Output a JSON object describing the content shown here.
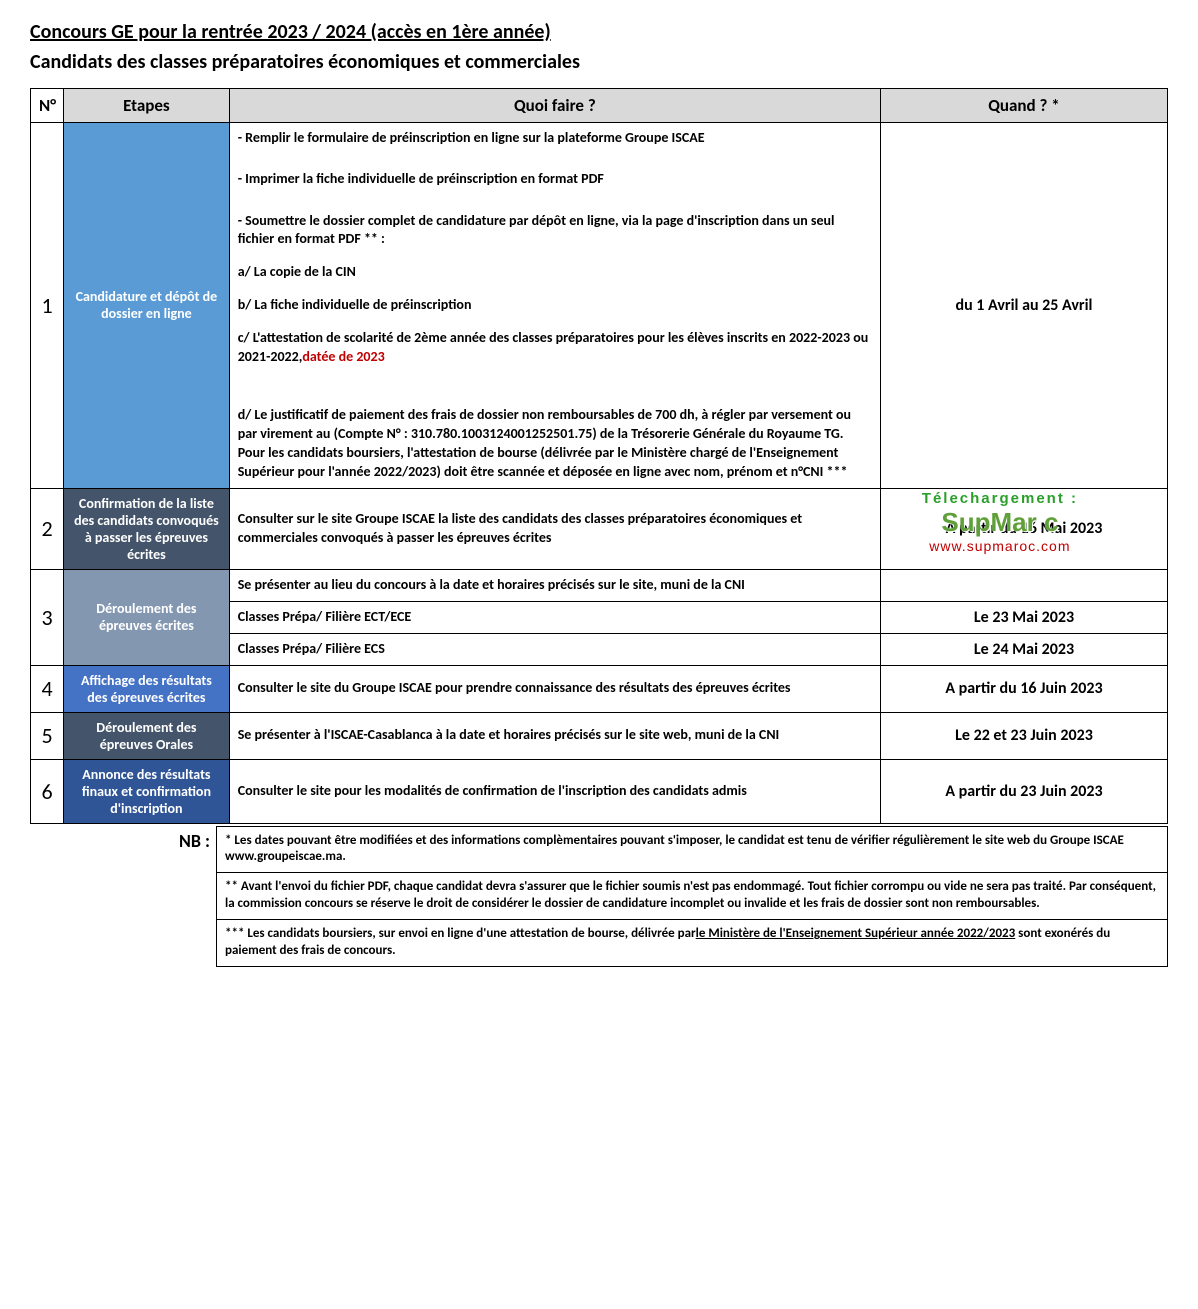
{
  "title": "Concours GE pour la rentrée 2023 / 2024 (accès en 1ère année)",
  "subtitle": "Candidats des classes préparatoires économiques et commerciales",
  "headers": {
    "num": "N°",
    "etapes": "Etapes",
    "quoi": "Quoi faire ?",
    "quand": "Quand ? *"
  },
  "rows": [
    {
      "num": "1",
      "etape": "Candidature et dépôt de  dossier en ligne",
      "etape_bg": "#5b9bd5",
      "quoi_pre": "- Remplir le formulaire de préinscription en ligne sur la plateforme Groupe ISCAE\n\n- Imprimer la fiche individuelle de préinscription  en format PDF\n\n- Soumettre le dossier complet de candidature par dépôt en ligne, via la page d'inscription dans un seul fichier en format PDF ** :\na/ La copie de la CIN\nb/ La fiche individuelle de préinscription\nc/ L'attestation de scolarité de 2ème année des classes préparatoires  pour les élèves inscrits en  2022-2023  ou  2021-2022,",
      "quoi_red": "datée de 2023",
      "quoi_post": "\n\n\nd/ Le justificatif de paiement des frais de dossier non remboursables de 700 dh, à régler par versement ou par virement au (Compte N° : 310.780.1003124001252501.75) de la Trésorerie Générale du Royaume  TG. Pour les candidats boursiers, l'attestation de bourse (délivrée par le Ministère chargé de l'Enseignement Supérieur pour l'année 2022/2023) doit être scannée et déposée en ligne avec nom, prénom et n°CNI ***",
      "quand": "du 1 Avril au 25 Avril"
    },
    {
      "num": "2",
      "etape": "Confirmation de la liste des candidats convoqués à passer les épreuves  écrites",
      "etape_bg": "#44546a",
      "quoi": "Consulter sur le site Groupe ISCAE la liste des candidats des classes préparatoires économiques et commerciales convoqués à passer les épreuves écrites",
      "quand": "A partir du 16 Mai 2023"
    },
    {
      "num": "3",
      "etape": "Déroulement des épreuves écrites",
      "etape_bg": "#8497b0",
      "sub": [
        {
          "quoi": "Se présenter au lieu du concours à la date et horaires précisés sur le site, muni de la CNI",
          "quand": ""
        },
        {
          "quoi": "Classes Prépa/ Filière ECT/ECE",
          "quand": "Le 23 Mai 2023"
        },
        {
          "quoi": "Classes Prépa/ Filière ECS",
          "quand": "Le 24 Mai 2023"
        }
      ]
    },
    {
      "num": "4",
      "etape": "Affichage des résultats des épreuves écrites",
      "etape_bg": "#4472c4",
      "quoi": "Consulter le site du Groupe ISCAE pour prendre connaissance des résultats des épreuves écrites",
      "quand": "A partir du 16 Juin 2023"
    },
    {
      "num": "5",
      "etape": "Déroulement des épreuves Orales",
      "etape_bg": "#44546a",
      "quoi": "Se présenter à l'ISCAE-Casablanca à la date et horaires précisés sur le site web, muni de la CNI",
      "quand": "Le 22 et 23 Juin 2023"
    },
    {
      "num": "6",
      "etape": "Annonce des résultats finaux et confirmation d'inscription",
      "etape_bg": "#2f5597",
      "quoi": "Consulter le site pour les modalités de confirmation de l'inscription des candidats admis",
      "quand": "A partir du 23 Juin 2023"
    }
  ],
  "nb_label": "NB :",
  "notes": [
    "*  Les dates pouvant être modifiées et des informations complèmentaires pouvant s'imposer, le candidat est tenu de vérifier régulièrement le site web du Groupe ISCAE www.groupeiscae.ma.",
    "** Avant l'envoi du fichier PDF, chaque candidat devra s'assurer que le fichier soumis n'est pas endommagé. Tout fichier corrompu ou vide ne sera pas traité. Par conséquent, la commission concours se réserve le droit de considérer le dossier de candidature incomplet ou invalide et les frais de dossier sont non remboursables."
  ],
  "note3_pre": "*** Les candidats boursiers, sur envoi en ligne d'une attestation de bourse, délivrée par",
  "note3_u": "le Ministère de l'Enseignement Supérieur année 2022/2023",
  "note3_post": " sont exonérés du paiement des frais de concours.",
  "watermark": {
    "line1": "Télechargement  :",
    "line2": "SupMar   c",
    "line3": "www.supmaroc.com"
  }
}
